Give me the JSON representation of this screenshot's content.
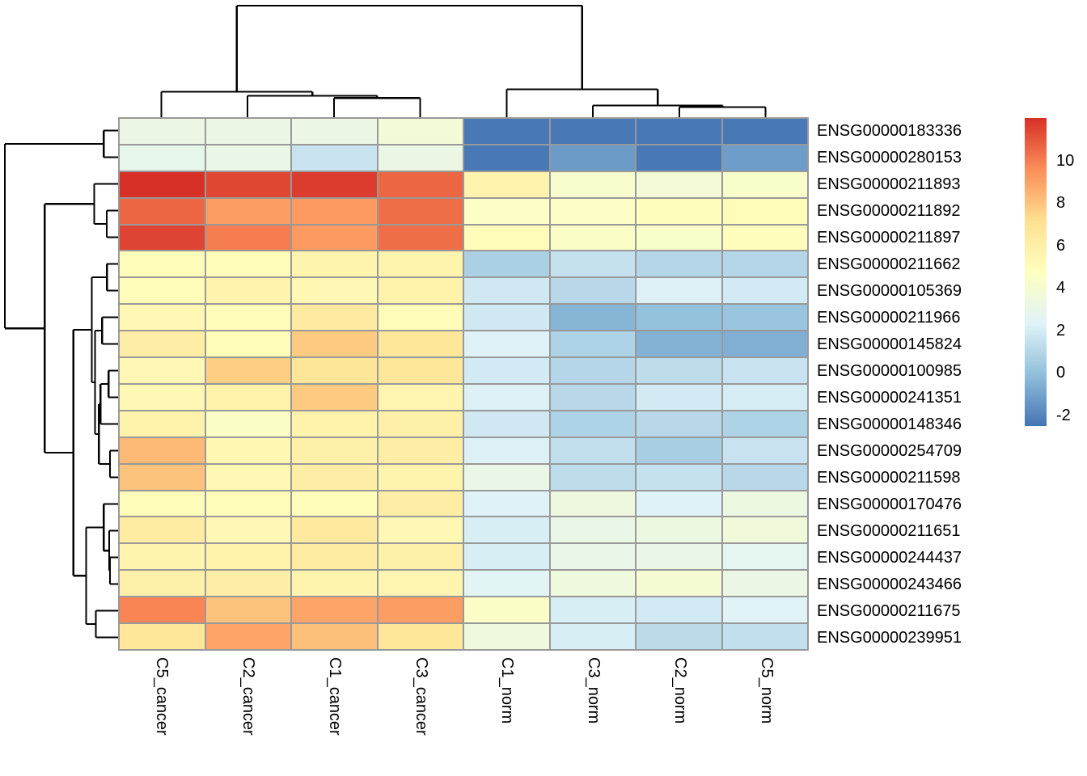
{
  "chart_data": {
    "type": "heatmap",
    "title": "",
    "rows": [
      "ENSG00000183336",
      "ENSG00000280153",
      "ENSG00000211893",
      "ENSG00000211892",
      "ENSG00000211897",
      "ENSG00000211662",
      "ENSG00000105369",
      "ENSG00000211966",
      "ENSG00000145824",
      "ENSG00000100985",
      "ENSG00000241351",
      "ENSG00000148346",
      "ENSG00000254709",
      "ENSG00000211598",
      "ENSG00000170476",
      "ENSG00000211651",
      "ENSG00000244437",
      "ENSG00000243466",
      "ENSG00000211675",
      "ENSG00000239951"
    ],
    "columns": [
      "C5_cancer",
      "C2_cancer",
      "C1_cancer",
      "C3_cancer",
      "C1_norm",
      "C3_norm",
      "C2_norm",
      "C5_norm"
    ],
    "values": [
      [
        3.2,
        3.2,
        3.2,
        3.7,
        -2.4,
        -2.4,
        -2.4,
        -2.4
      ],
      [
        2.9,
        3.1,
        1.6,
        3.2,
        -2.4,
        -1.3,
        -2.4,
        -1.2
      ],
      [
        12.0,
        11.4,
        11.7,
        10.6,
        5.7,
        4.2,
        3.8,
        4.3
      ],
      [
        10.6,
        9.1,
        9.2,
        10.4,
        4.5,
        4.5,
        4.9,
        5.0
      ],
      [
        11.5,
        10.0,
        9.2,
        10.4,
        5.0,
        4.4,
        4.3,
        4.9
      ],
      [
        5.1,
        5.1,
        5.6,
        5.6,
        0.7,
        1.5,
        1.0,
        1.0
      ],
      [
        5.1,
        5.7,
        5.3,
        5.8,
        1.8,
        1.1,
        2.2,
        1.9
      ],
      [
        5.3,
        5.1,
        6.3,
        5.0,
        1.8,
        -0.4,
        0.0,
        0.2
      ],
      [
        6.1,
        5.0,
        7.8,
        6.6,
        2.3,
        0.8,
        -0.5,
        -0.6
      ],
      [
        5.3,
        7.7,
        6.7,
        6.6,
        1.9,
        1.0,
        1.3,
        1.6
      ],
      [
        5.3,
        5.8,
        7.8,
        5.5,
        2.2,
        1.1,
        1.9,
        2.0
      ],
      [
        5.8,
        4.4,
        5.8,
        5.9,
        1.8,
        0.8,
        1.1,
        0.8
      ],
      [
        8.3,
        5.4,
        5.9,
        6.1,
        2.2,
        1.4,
        0.6,
        1.6
      ],
      [
        8.0,
        5.3,
        6.1,
        5.6,
        3.1,
        1.3,
        1.5,
        1.1
      ],
      [
        5.1,
        5.1,
        5.0,
        6.1,
        2.3,
        3.4,
        2.3,
        3.3
      ],
      [
        6.2,
        5.3,
        6.4,
        5.3,
        2.1,
        3.1,
        3.3,
        3.6
      ],
      [
        5.6,
        5.8,
        6.2,
        5.9,
        2.1,
        3.0,
        3.1,
        2.7
      ],
      [
        5.9,
        6.1,
        5.6,
        5.5,
        2.5,
        3.5,
        3.9,
        3.2
      ],
      [
        9.8,
        8.0,
        8.9,
        9.1,
        4.4,
        2.1,
        1.9,
        2.4
      ],
      [
        6.6,
        8.9,
        8.1,
        6.6,
        3.5,
        2.1,
        1.2,
        1.4
      ]
    ],
    "color_scale": {
      "stops": [
        "#4575b4",
        "#91bfdb",
        "#e0f3f8",
        "#ffffbf",
        "#fee090",
        "#fc8d59",
        "#d73027"
      ],
      "domain": [
        -2.5,
        12
      ],
      "legend_ticks": [
        10,
        8,
        6,
        4,
        2,
        0,
        -2
      ]
    },
    "cell_border_color": "#999999",
    "dendrogram_color": "#000000",
    "col_dendrogram": [
      [
        2,
        3,
        0.169
      ],
      [
        1,
        "m0",
        0.19
      ],
      [
        0,
        "m1",
        0.225
      ],
      [
        6,
        7,
        0.089
      ],
      [
        5,
        "m3",
        0.103
      ],
      [
        4,
        "m4",
        0.246
      ],
      [
        "m2",
        "m5",
        0.986
      ]
    ],
    "row_dendrogram": [
      [
        0,
        1,
        0.126
      ],
      [
        3,
        4,
        0.1
      ],
      [
        2,
        "m1",
        0.21
      ],
      [
        5,
        6,
        0.098
      ],
      [
        7,
        8,
        0.14
      ],
      [
        9,
        10,
        0.084
      ],
      [
        "m5",
        11,
        0.154
      ],
      [
        12,
        13,
        0.07
      ],
      [
        "m6",
        "m7",
        0.168
      ],
      [
        "m4",
        "m8",
        0.203
      ],
      [
        "m3",
        "m9",
        0.231
      ],
      [
        16,
        17,
        0.07
      ],
      [
        15,
        "m11",
        0.077
      ],
      [
        14,
        "m12",
        0.126
      ],
      [
        18,
        19,
        0.196
      ],
      [
        "m13",
        "m14",
        0.28
      ],
      [
        "m10",
        "m15",
        0.392
      ],
      [
        "m2",
        "m16",
        0.643
      ],
      [
        "m0",
        "m17",
        0.993
      ]
    ]
  }
}
